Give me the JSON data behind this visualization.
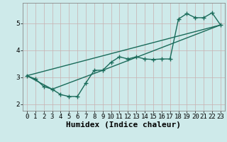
{
  "title": "",
  "xlabel": "Humidex (Indice chaleur)",
  "ylabel": "",
  "bg_color": "#ceeaea",
  "grid_color": "#c8b0b0",
  "line_color": "#1a6b5a",
  "xlim": [
    -0.5,
    23.5
  ],
  "ylim": [
    1.75,
    5.75
  ],
  "xticks": [
    0,
    1,
    2,
    3,
    4,
    5,
    6,
    7,
    8,
    9,
    10,
    11,
    12,
    13,
    14,
    15,
    16,
    17,
    18,
    19,
    20,
    21,
    22,
    23
  ],
  "yticks": [
    2,
    3,
    4,
    5
  ],
  "line1_x": [
    0,
    1,
    2,
    3,
    4,
    5,
    6,
    7,
    8,
    9,
    10,
    11,
    12,
    13,
    14,
    15,
    16,
    17,
    18,
    19,
    20,
    21,
    22,
    23
  ],
  "line1_y": [
    3.05,
    2.93,
    2.65,
    2.55,
    2.35,
    2.28,
    2.28,
    2.78,
    3.25,
    3.25,
    3.55,
    3.75,
    3.67,
    3.75,
    3.67,
    3.65,
    3.67,
    3.67,
    5.15,
    5.35,
    5.2,
    5.2,
    5.38,
    4.93
  ],
  "line2_x": [
    0,
    23
  ],
  "line2_y": [
    3.05,
    4.93
  ],
  "line3_x": [
    0,
    3,
    9,
    23
  ],
  "line3_y": [
    3.05,
    2.55,
    3.25,
    4.93
  ],
  "marker": "+",
  "markersize": 4,
  "linewidth": 1.0,
  "xlabel_fontsize": 8,
  "tick_fontsize": 6.5
}
